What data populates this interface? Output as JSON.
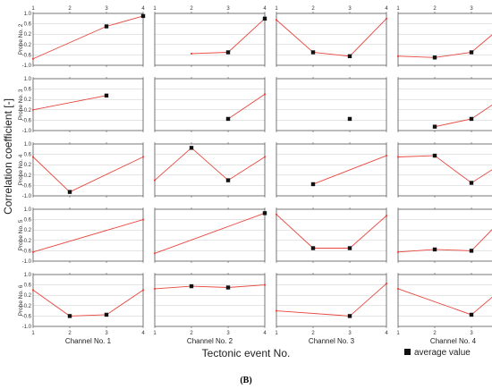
{
  "chart_data": {
    "type": "line",
    "title": "",
    "xlabel": "Tectonic event No.",
    "ylabel": "Correlation coefficient [-]",
    "caption": "(B)",
    "legend": {
      "marker_label": "average value",
      "placement": "bottom-right"
    },
    "x_ticks": [
      "1",
      "2",
      "3",
      "4"
    ],
    "y_ticks": [
      "1.0",
      "0.6",
      "0.2",
      "-0.2",
      "-0.6",
      "-1.0"
    ],
    "y_ticks_compact": [
      "1.0",
      "0.6",
      "0.2",
      "-0.2",
      "-0.6",
      "-1.0"
    ],
    "xlim": [
      1,
      4
    ],
    "ylim": [
      -1,
      1
    ],
    "grid": true,
    "line_color": "#e8473f",
    "marker_color": "#111111",
    "columns": [
      "Channel No. 1",
      "Channel No. 2",
      "Channel No. 3",
      "Channel No. 4"
    ],
    "rows": [
      "Probe No. 2",
      "Probe No. 3",
      "Probe No. 4",
      "Probe No. 5",
      "Probe No. 6"
    ],
    "panels": [
      [
        {
          "x": [
            1,
            3,
            4
          ],
          "y": [
            -0.75,
            0.5,
            0.9
          ],
          "markers": [
            3,
            4
          ]
        },
        {
          "x": [
            2,
            3,
            4
          ],
          "y": [
            -0.55,
            -0.5,
            0.8
          ],
          "markers": [
            3,
            4
          ]
        },
        {
          "x": [
            1,
            2,
            3,
            4
          ],
          "y": [
            0.75,
            -0.5,
            -0.65,
            0.8
          ],
          "markers": [
            2,
            3
          ]
        },
        {
          "x": [
            1,
            2,
            3,
            4
          ],
          "y": [
            -0.65,
            -0.7,
            -0.5,
            0.7
          ],
          "markers": [
            2,
            3,
            4
          ]
        }
      ],
      [
        {
          "x": [
            1,
            3
          ],
          "y": [
            -0.2,
            0.35
          ],
          "markers": [
            3
          ]
        },
        {
          "x": [
            3,
            4
          ],
          "y": [
            -0.55,
            0.4
          ],
          "markers": [
            3
          ]
        },
        {
          "x": [
            3
          ],
          "y": [
            -0.55
          ],
          "markers": [
            3
          ]
        },
        {
          "x": [
            2,
            3,
            4
          ],
          "y": [
            -0.85,
            -0.55,
            0.4
          ],
          "markers": [
            2,
            3
          ]
        }
      ],
      [
        {
          "x": [
            1,
            2,
            4
          ],
          "y": [
            0.5,
            -0.85,
            0.5
          ],
          "markers": [
            2
          ]
        },
        {
          "x": [
            1,
            2,
            3,
            4
          ],
          "y": [
            -0.4,
            0.85,
            -0.4,
            0.5
          ],
          "markers": [
            2,
            3
          ]
        },
        {
          "x": [
            2,
            4
          ],
          "y": [
            -0.55,
            0.55
          ],
          "markers": [
            2
          ]
        },
        {
          "x": [
            1,
            2,
            3,
            4
          ],
          "y": [
            0.5,
            0.55,
            -0.5,
            0.4
          ],
          "markers": [
            2,
            3
          ]
        }
      ],
      [
        {
          "x": [
            1,
            4
          ],
          "y": [
            -0.65,
            0.6
          ],
          "markers": []
        },
        {
          "x": [
            1,
            4
          ],
          "y": [
            -0.7,
            0.85
          ],
          "markers": [
            4
          ]
        },
        {
          "x": [
            1,
            2,
            3,
            4
          ],
          "y": [
            0.8,
            -0.5,
            -0.5,
            0.75
          ],
          "markers": [
            2,
            3
          ]
        },
        {
          "x": [
            1,
            2,
            3,
            4
          ],
          "y": [
            -0.65,
            -0.55,
            -0.6,
            0.85
          ],
          "markers": [
            2,
            3,
            4
          ]
        }
      ],
      [
        {
          "x": [
            1,
            2,
            3,
            4
          ],
          "y": [
            0.4,
            -0.6,
            -0.55,
            0.4
          ],
          "markers": [
            2,
            3
          ]
        },
        {
          "x": [
            1,
            2,
            3,
            4
          ],
          "y": [
            0.45,
            0.55,
            0.5,
            0.6
          ],
          "markers": [
            2,
            3
          ]
        },
        {
          "x": [
            1,
            3,
            4
          ],
          "y": [
            -0.4,
            -0.6,
            0.65
          ],
          "markers": [
            3
          ]
        },
        {
          "x": [
            1,
            3,
            4
          ],
          "y": [
            0.45,
            -0.55,
            0.65
          ],
          "markers": [
            3,
            4
          ]
        }
      ]
    ]
  }
}
